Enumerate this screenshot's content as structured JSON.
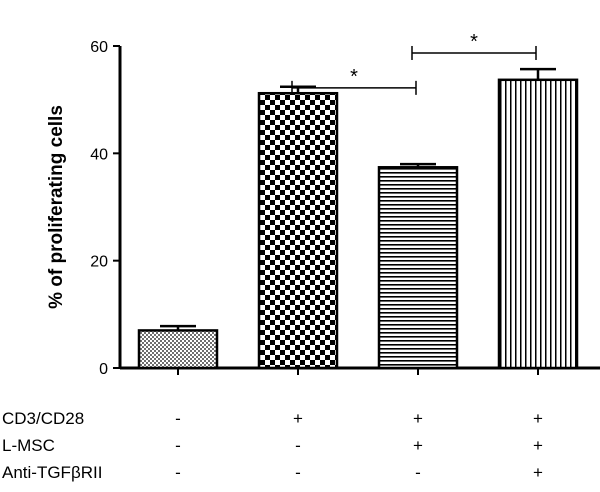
{
  "chart_data": {
    "type": "bar",
    "ylabel": "% of proliferating cells",
    "xlabel": "",
    "ylim": [
      0,
      60
    ],
    "yticks": [
      "0",
      "20",
      "40",
      "60"
    ],
    "grid": false,
    "bars": [
      {
        "value": 7.0,
        "error": 0.8,
        "pattern": "fine-checker"
      },
      {
        "value": 51.2,
        "error": 1.2,
        "pattern": "checker"
      },
      {
        "value": 37.4,
        "error": 0.6,
        "pattern": "horizontal-lines"
      },
      {
        "value": 53.7,
        "error": 2.0,
        "pattern": "vertical-lines"
      }
    ],
    "conditions": [
      {
        "label": "CD3/CD28",
        "signs": [
          "-",
          "+",
          "+",
          "+"
        ]
      },
      {
        "label": "L-MSC",
        "signs": [
          "-",
          "-",
          "+",
          "+"
        ]
      },
      {
        "label": "Anti-TGFβRII",
        "signs": [
          "-",
          "-",
          "-",
          "+"
        ]
      }
    ],
    "significance": [
      {
        "from": 1,
        "to": 2,
        "label": "*"
      },
      {
        "from": 2,
        "to": 3,
        "label": "*"
      }
    ]
  },
  "colors": {
    "ink": "#000000",
    "fine_fill": "#8a8a8a"
  }
}
